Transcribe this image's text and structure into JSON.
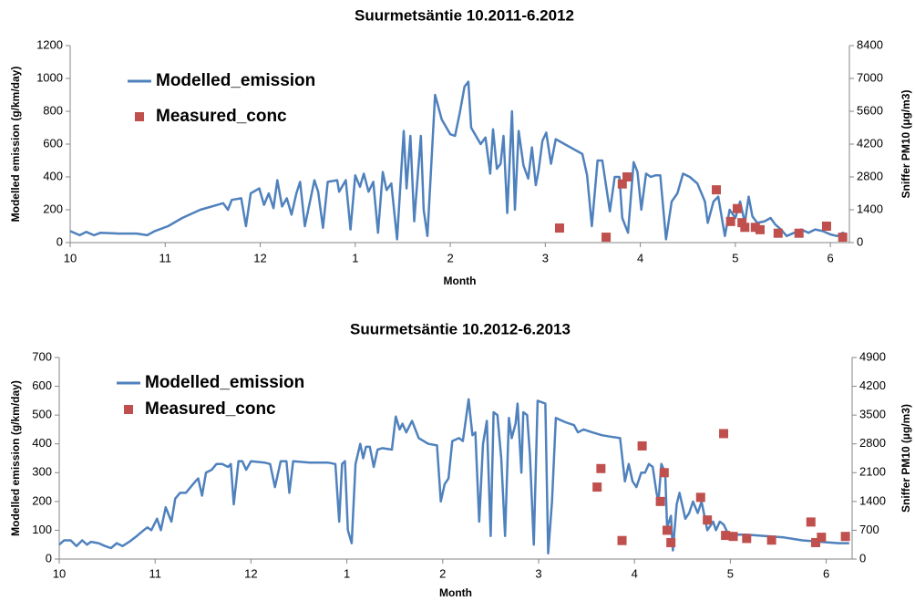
{
  "chart_data": [
    {
      "type": "line",
      "title": "Suurmetsäntie 10.2011-6.2012",
      "xlabel": "Month",
      "ylabel": "Modelled emission  (g/km/day)",
      "y2label": "Sniffer PM10 (µg/m3)",
      "xlim": [
        0,
        8.2
      ],
      "xticks": [
        {
          "value": 0,
          "label": "10"
        },
        {
          "value": 1,
          "label": "11"
        },
        {
          "value": 2,
          "label": "12"
        },
        {
          "value": 3,
          "label": "1"
        },
        {
          "value": 4,
          "label": "2"
        },
        {
          "value": 5,
          "label": "3"
        },
        {
          "value": 6,
          "label": "4"
        },
        {
          "value": 7,
          "label": "5"
        },
        {
          "value": 8,
          "label": "6"
        }
      ],
      "ylim": [
        0,
        1200
      ],
      "yticks": [
        0,
        200,
        400,
        600,
        800,
        1000,
        1200
      ],
      "y2lim": [
        0,
        8400
      ],
      "y2ticks": [
        0,
        1400,
        2800,
        4200,
        5600,
        7000,
        8400
      ],
      "grid": false,
      "series": [
        {
          "name": "Modelled_emission",
          "type": "line",
          "color": "#4f81bd",
          "x": [
            0,
            0.1,
            0.17,
            0.25,
            0.32,
            0.51,
            0.7,
            0.81,
            0.89,
            1.03,
            1.18,
            1.37,
            1.61,
            1.66,
            1.7,
            1.8,
            1.85,
            1.9,
            1.99,
            2.04,
            2.09,
            2.14,
            2.18,
            2.23,
            2.28,
            2.33,
            2.38,
            2.42,
            2.47,
            2.57,
            2.61,
            2.66,
            2.71,
            2.81,
            2.83,
            2.9,
            2.95,
            3.0,
            3.05,
            3.09,
            3.14,
            3.19,
            3.24,
            3.29,
            3.33,
            3.38,
            3.44,
            3.51,
            3.54,
            3.58,
            3.62,
            3.69,
            3.72,
            3.76,
            3.84,
            3.91,
            4.0,
            4.05,
            4.1,
            4.15,
            4.19,
            4.22,
            4.26,
            4.32,
            4.37,
            4.42,
            4.45,
            4.49,
            4.53,
            4.56,
            4.6,
            4.65,
            4.68,
            4.72,
            4.77,
            4.82,
            4.86,
            4.9,
            4.93,
            4.97,
            5.01,
            5.06,
            5.11,
            5.39,
            5.44,
            5.49,
            5.55,
            5.6,
            5.68,
            5.73,
            5.78,
            5.81,
            5.87,
            5.93,
            5.97,
            6.01,
            6.06,
            6.11,
            6.16,
            6.21,
            6.27,
            6.33,
            6.39,
            6.45,
            6.52,
            6.6,
            6.68,
            6.71,
            6.77,
            6.82,
            6.89,
            6.94,
            7.0,
            7.05,
            7.1,
            7.14,
            7.18,
            7.23,
            7.31,
            7.37,
            7.42,
            7.48,
            7.54,
            7.62,
            7.69,
            7.77,
            7.84,
            7.92,
            8.0,
            8.07,
            8.13,
            8.17
          ],
          "values": [
            70,
            45,
            65,
            45,
            60,
            55,
            55,
            45,
            70,
            100,
            150,
            200,
            240,
            200,
            260,
            270,
            100,
            300,
            330,
            230,
            300,
            210,
            380,
            220,
            270,
            170,
            300,
            370,
            100,
            380,
            310,
            90,
            370,
            380,
            310,
            380,
            80,
            410,
            340,
            420,
            310,
            370,
            60,
            430,
            320,
            360,
            20,
            680,
            330,
            650,
            130,
            650,
            200,
            40,
            900,
            750,
            660,
            650,
            790,
            950,
            980,
            700,
            660,
            600,
            640,
            420,
            690,
            450,
            480,
            650,
            180,
            800,
            200,
            680,
            470,
            390,
            580,
            350,
            440,
            620,
            670,
            480,
            630,
            540,
            410,
            100,
            500,
            500,
            190,
            400,
            400,
            150,
            60,
            490,
            430,
            200,
            420,
            400,
            410,
            410,
            20,
            250,
            300,
            420,
            400,
            360,
            250,
            120,
            250,
            280,
            40,
            200,
            150,
            250,
            120,
            280,
            160,
            120,
            130,
            150,
            110,
            80,
            40,
            60,
            80,
            60,
            80,
            70,
            50,
            40,
            60,
            50
          ]
        },
        {
          "name": "Measured_conc",
          "type": "scatter",
          "marker": "square",
          "axis": "y2",
          "color": "#c0504d",
          "x": [
            5.15,
            5.64,
            5.81,
            5.86,
            6.8,
            6.95,
            7.02,
            7.07,
            7.1,
            7.21,
            7.26,
            7.45,
            7.67,
            7.96,
            8.13
          ],
          "values": [
            620,
            230,
            2500,
            2800,
            2250,
            900,
            1450,
            850,
            650,
            650,
            550,
            400,
            400,
            700,
            230
          ]
        }
      ]
    },
    {
      "type": "line",
      "title": "Suurmetsäntie 10.2012-6.2013",
      "xlabel": "Month",
      "ylabel": "Modelled emission  (g/km/day)",
      "y2label": "Sniffer PM10 (µg/m3)",
      "xlim": [
        0,
        8.27
      ],
      "xticks": [
        {
          "value": 0,
          "label": "10"
        },
        {
          "value": 1,
          "label": "11"
        },
        {
          "value": 2,
          "label": "12"
        },
        {
          "value": 3,
          "label": "1"
        },
        {
          "value": 4,
          "label": "2"
        },
        {
          "value": 5,
          "label": "3"
        },
        {
          "value": 6,
          "label": "4"
        },
        {
          "value": 7,
          "label": "5"
        },
        {
          "value": 8,
          "label": "6"
        }
      ],
      "ylim": [
        0,
        700
      ],
      "yticks": [
        0,
        100,
        200,
        300,
        400,
        500,
        600,
        700
      ],
      "y2lim": [
        0,
        4900
      ],
      "y2ticks": [
        0,
        700,
        1400,
        2100,
        2800,
        3500,
        4200,
        4900
      ],
      "grid": false,
      "series": [
        {
          "name": "Modelled_emission",
          "type": "line",
          "color": "#4f81bd",
          "x": [
            0,
            0.05,
            0.12,
            0.18,
            0.24,
            0.29,
            0.33,
            0.41,
            0.48,
            0.54,
            0.6,
            0.66,
            0.73,
            0.81,
            0.88,
            0.92,
            0.96,
            1.02,
            1.06,
            1.11,
            1.17,
            1.21,
            1.26,
            1.32,
            1.42,
            1.45,
            1.49,
            1.53,
            1.59,
            1.64,
            1.7,
            1.76,
            1.79,
            1.82,
            1.87,
            1.91,
            1.95,
            2.0,
            2.14,
            2.2,
            2.25,
            2.31,
            2.37,
            2.4,
            2.44,
            2.61,
            2.8,
            2.88,
            2.92,
            2.95,
            2.98,
            3.01,
            3.05,
            3.09,
            3.14,
            3.17,
            3.2,
            3.24,
            3.28,
            3.32,
            3.37,
            3.47,
            3.51,
            3.55,
            3.58,
            3.62,
            3.68,
            3.75,
            3.85,
            3.94,
            3.98,
            4.02,
            4.06,
            4.1,
            4.17,
            4.21,
            4.27,
            4.31,
            4.34,
            4.38,
            4.42,
            4.46,
            4.5,
            4.53,
            4.57,
            4.61,
            4.65,
            4.69,
            4.72,
            4.76,
            4.78,
            4.82,
            4.84,
            4.88,
            4.91,
            4.95,
            4.99,
            5.07,
            5.1,
            5.14,
            5.18,
            5.28,
            5.37,
            5.41,
            5.47,
            5.56,
            5.66,
            5.75,
            5.85,
            5.9,
            5.94,
            5.98,
            6.02,
            6.07,
            6.11,
            6.15,
            6.19,
            6.23,
            6.25,
            6.28,
            6.32,
            6.34,
            6.38,
            6.4,
            6.44,
            6.47,
            6.53,
            6.57,
            6.61,
            6.66,
            6.7,
            6.76,
            6.82,
            6.85,
            6.89,
            6.93,
            6.98,
            7.17,
            7.36,
            7.56,
            7.75,
            7.94,
            8.13,
            8.24
          ],
          "values": [
            50,
            65,
            65,
            45,
            65,
            50,
            60,
            55,
            45,
            38,
            55,
            45,
            60,
            80,
            100,
            110,
            100,
            140,
            100,
            180,
            130,
            210,
            230,
            230,
            270,
            280,
            220,
            300,
            310,
            330,
            330,
            320,
            330,
            190,
            340,
            340,
            310,
            340,
            335,
            330,
            250,
            340,
            340,
            230,
            340,
            335,
            335,
            330,
            130,
            330,
            340,
            100,
            55,
            330,
            400,
            350,
            390,
            390,
            320,
            380,
            385,
            380,
            495,
            450,
            470,
            440,
            480,
            420,
            400,
            395,
            200,
            260,
            280,
            410,
            420,
            410,
            555,
            430,
            440,
            130,
            400,
            480,
            80,
            510,
            500,
            350,
            80,
            490,
            420,
            470,
            540,
            300,
            510,
            500,
            360,
            50,
            550,
            540,
            20,
            200,
            490,
            475,
            465,
            440,
            450,
            440,
            430,
            425,
            420,
            270,
            330,
            270,
            250,
            300,
            300,
            330,
            320,
            230,
            200,
            330,
            300,
            110,
            150,
            30,
            190,
            230,
            140,
            160,
            200,
            160,
            200,
            100,
            130,
            100,
            130,
            120,
            85,
            85,
            80,
            75,
            65,
            60,
            55,
            55
          ]
        },
        {
          "name": "Measured_conc",
          "type": "scatter",
          "marker": "square",
          "axis": "y2",
          "color": "#c0504d",
          "x": [
            5.61,
            5.65,
            5.87,
            6.08,
            6.27,
            6.31,
            6.34,
            6.38,
            6.69,
            6.76,
            6.93,
            6.95,
            7.03,
            7.17,
            7.43,
            7.84,
            7.89,
            7.95,
            8.2
          ],
          "values": [
            1750,
            2200,
            450,
            2750,
            1400,
            2100,
            700,
            400,
            1500,
            950,
            3050,
            575,
            550,
            500,
            460,
            900,
            400,
            530,
            550
          ]
        }
      ]
    }
  ]
}
